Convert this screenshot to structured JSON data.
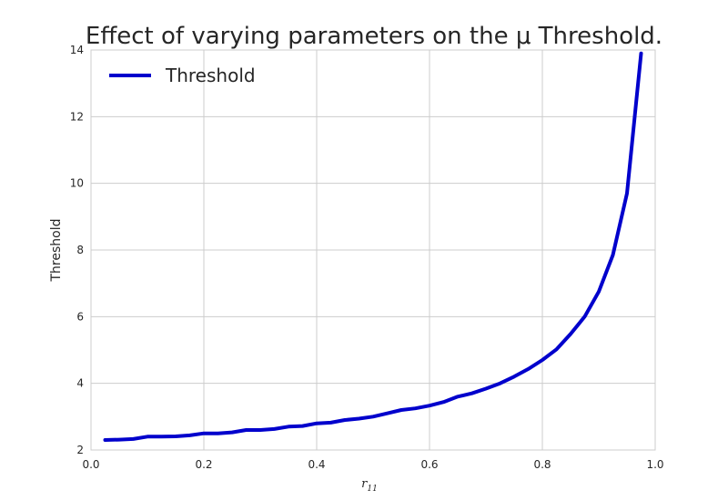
{
  "chart_data": {
    "type": "line",
    "title": "Effect of varying parameters on the μ Threshold.",
    "xlabel_base": "r",
    "xlabel_sub": "11",
    "ylabel": "Threshold",
    "xlim": [
      0.0,
      1.0
    ],
    "ylim": [
      2,
      14
    ],
    "x_ticks": [
      "0.0",
      "0.2",
      "0.4",
      "0.6",
      "0.8",
      "1.0"
    ],
    "y_ticks": [
      "2",
      "4",
      "6",
      "8",
      "10",
      "12",
      "14"
    ],
    "grid": true,
    "legend_position": "top-left",
    "series": [
      {
        "name": "Threshold",
        "color": "#0000cc",
        "x": [
          0.025,
          0.05,
          0.075,
          0.1,
          0.125,
          0.15,
          0.175,
          0.2,
          0.225,
          0.25,
          0.275,
          0.3,
          0.325,
          0.35,
          0.375,
          0.4,
          0.425,
          0.45,
          0.475,
          0.5,
          0.525,
          0.55,
          0.575,
          0.6,
          0.625,
          0.65,
          0.675,
          0.7,
          0.725,
          0.75,
          0.775,
          0.8,
          0.825,
          0.85,
          0.875,
          0.9,
          0.925,
          0.95,
          0.975
        ],
        "y": [
          2.3,
          2.31,
          2.33,
          2.4,
          2.4,
          2.41,
          2.44,
          2.5,
          2.5,
          2.53,
          2.6,
          2.6,
          2.63,
          2.7,
          2.72,
          2.8,
          2.82,
          2.9,
          2.94,
          3.0,
          3.1,
          3.2,
          3.25,
          3.33,
          3.44,
          3.6,
          3.7,
          3.84,
          4.0,
          4.2,
          4.43,
          4.7,
          5.02,
          5.48,
          6.0,
          6.75,
          7.85,
          9.7,
          13.9
        ]
      }
    ]
  }
}
